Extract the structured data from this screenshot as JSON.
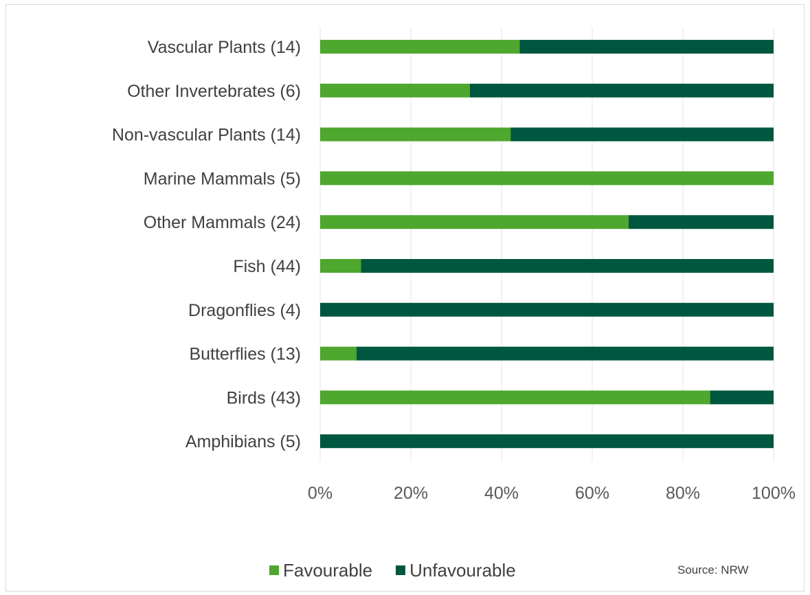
{
  "chart_data": {
    "type": "bar",
    "orientation": "horizontal",
    "stacked": true,
    "stack_mode": "percent",
    "categories": [
      "Vascular Plants (14)",
      "Other Invertebrates (6)",
      "Non-vascular Plants (14)",
      "Marine Mammals (5)",
      "Other Mammals (24)",
      "Fish (44)",
      "Dragonflies (4)",
      "Butterflies (13)",
      "Birds (43)",
      "Amphibians (5)"
    ],
    "series": [
      {
        "name": "Favourable",
        "color": "#4ea72e",
        "values": [
          44,
          33,
          42,
          100,
          68,
          9,
          0,
          8,
          86,
          0
        ]
      },
      {
        "name": "Unfavourable",
        "color": "#00573f",
        "values": [
          56,
          67,
          58,
          0,
          32,
          91,
          100,
          92,
          14,
          100
        ]
      }
    ],
    "xlim": [
      0,
      100
    ],
    "xticks": [
      "0%",
      "20%",
      "40%",
      "60%",
      "80%",
      "100%"
    ],
    "grid": true,
    "legend": "bottom",
    "title": "",
    "xlabel": "",
    "ylabel": ""
  },
  "source_note": "Source:  NRW"
}
